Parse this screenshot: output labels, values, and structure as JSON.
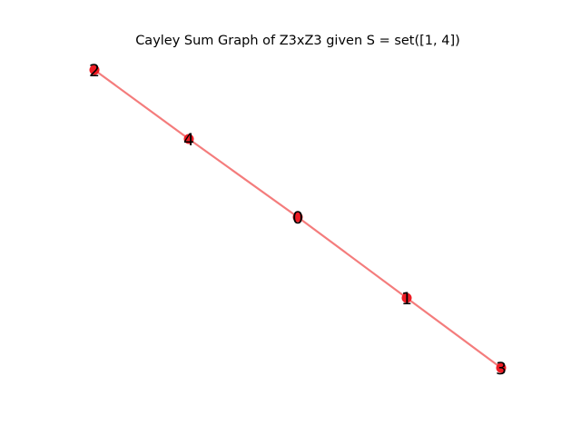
{
  "title": "Cayley Sum Graph of Z3xZ3 given S = set([1, 4])",
  "colors": {
    "node": "#ee1c24",
    "edge": "#f47c7c",
    "label": "#000000",
    "background": "#ffffff"
  },
  "graph": {
    "nodes": [
      {
        "id": "2",
        "label": "2"
      },
      {
        "id": "4",
        "label": "4"
      },
      {
        "id": "0",
        "label": "0"
      },
      {
        "id": "1",
        "label": "1"
      },
      {
        "id": "3",
        "label": "3"
      }
    ],
    "edges": [
      {
        "source": "2",
        "target": "4"
      },
      {
        "source": "4",
        "target": "0"
      },
      {
        "source": "0",
        "target": "1"
      },
      {
        "source": "1",
        "target": "3"
      }
    ]
  }
}
